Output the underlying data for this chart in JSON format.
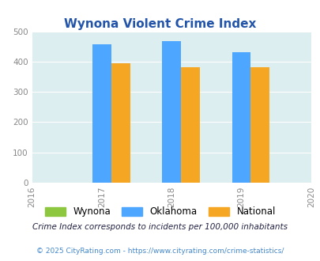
{
  "title": "Wynona Violent Crime Index",
  "title_color": "#2255aa",
  "years": [
    2016,
    2017,
    2018,
    2019,
    2020
  ],
  "bar_years": [
    2017,
    2018,
    2019
  ],
  "wynona": [
    0,
    0,
    0
  ],
  "oklahoma": [
    457,
    467,
    432
  ],
  "national": [
    394,
    381,
    381
  ],
  "bar_color_wynona": "#8dc63f",
  "bar_color_oklahoma": "#4da6ff",
  "bar_color_national": "#f5a623",
  "bg_color": "#ddeef0",
  "ylim": [
    0,
    500
  ],
  "yticks": [
    0,
    100,
    200,
    300,
    400,
    500
  ],
  "legend_labels": [
    "Wynona",
    "Oklahoma",
    "National"
  ],
  "footnote1": "Crime Index corresponds to incidents per 100,000 inhabitants",
  "footnote2": "© 2025 CityRating.com - https://www.cityrating.com/crime-statistics/",
  "footnote1_color": "#222244",
  "footnote2_color": "#4488cc",
  "bar_width": 0.27,
  "xlim": [
    2016,
    2020
  ]
}
